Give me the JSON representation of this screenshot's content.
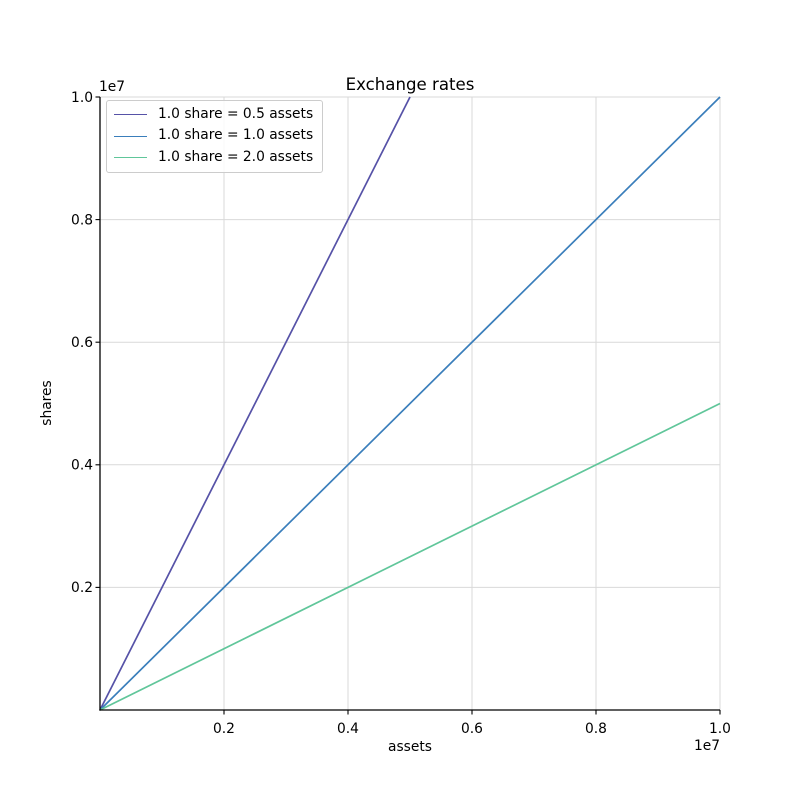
{
  "chart_data": {
    "type": "line",
    "title": "Exchange rates",
    "xlabel": "assets",
    "ylabel": "shares",
    "xlim": [
      0,
      10000000
    ],
    "ylim": [
      0,
      10000000
    ],
    "x_offset_text": "1e7",
    "y_offset_text": "1e7",
    "xticks": [
      2000000,
      4000000,
      6000000,
      8000000,
      10000000
    ],
    "xtick_labels": [
      "0.2",
      "0.4",
      "0.6",
      "0.8",
      "1.0"
    ],
    "yticks": [
      2000000,
      4000000,
      6000000,
      8000000,
      10000000
    ],
    "ytick_labels": [
      "0.2",
      "0.4",
      "0.6",
      "0.8",
      "1.0"
    ],
    "grid": true,
    "legend_position": "upper-left",
    "series": [
      {
        "name": "1.0 share = 0.5 assets",
        "color": "#5652a7",
        "x": [
          0,
          5000000
        ],
        "y": [
          0,
          10000000
        ]
      },
      {
        "name": "1.0 share = 1.0 assets",
        "color": "#3a7ebb",
        "x": [
          0,
          10000000
        ],
        "y": [
          0,
          10000000
        ]
      },
      {
        "name": "1.0 share = 2.0 assets",
        "color": "#60c69a",
        "x": [
          0,
          10000000
        ],
        "y": [
          0,
          5000000
        ]
      }
    ]
  },
  "colors": {
    "grid": "#d9d9d9",
    "spine": "#000000",
    "text": "#000000",
    "legend_border": "#cccccc",
    "background": "#ffffff"
  }
}
